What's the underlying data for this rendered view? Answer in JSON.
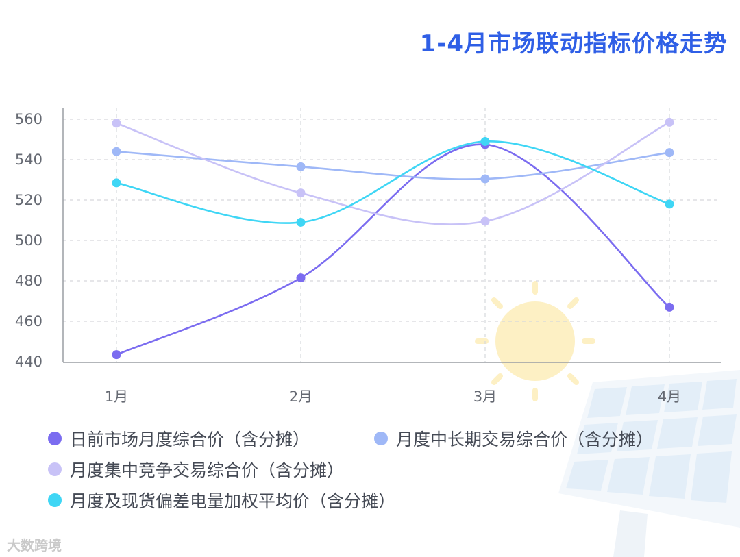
{
  "title": "1-4月市场联动指标价格走势",
  "watermark": "大数跨境",
  "colors": {
    "title": "#2f5fe6",
    "sun": "#fdf0c4",
    "panel": "#e8f0f8"
  },
  "chart_data": {
    "type": "line",
    "categories": [
      "1月",
      "2月",
      "3月",
      "4月"
    ],
    "ylim": [
      440,
      560
    ],
    "yticks": [
      440,
      460,
      480,
      500,
      520,
      540,
      560
    ],
    "grid": true,
    "legend_position": "bottom",
    "series": [
      {
        "name": "日前市场月度综合价（含分摊）",
        "color": "#7b6cf0",
        "values": [
          443.5,
          481.5,
          547.5,
          467.0
        ]
      },
      {
        "name": "月度中长期交易综合价（含分摊）",
        "color": "#9fb8f7",
        "values": [
          544.0,
          536.5,
          530.5,
          543.5
        ]
      },
      {
        "name": "月度集中竞争交易综合价（含分摊）",
        "color": "#c8c2f7",
        "values": [
          558.0,
          523.5,
          509.5,
          558.5
        ]
      },
      {
        "name": "月度及现货偏差电量加权平均价（含分摊）",
        "color": "#3fd6f5",
        "values": [
          528.5,
          509.0,
          549.0,
          518.0
        ]
      }
    ]
  }
}
